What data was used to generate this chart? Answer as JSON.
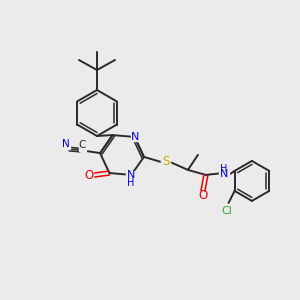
{
  "background_color": "#ebebeb",
  "bond_color": "#2a2a2a",
  "atom_colors": {
    "N": "#0000ee",
    "O": "#ee0000",
    "S": "#ccaa00",
    "Cl": "#33aa33",
    "C": "#2a2a2a"
  },
  "lw": 1.4,
  "lw_double": 1.1
}
